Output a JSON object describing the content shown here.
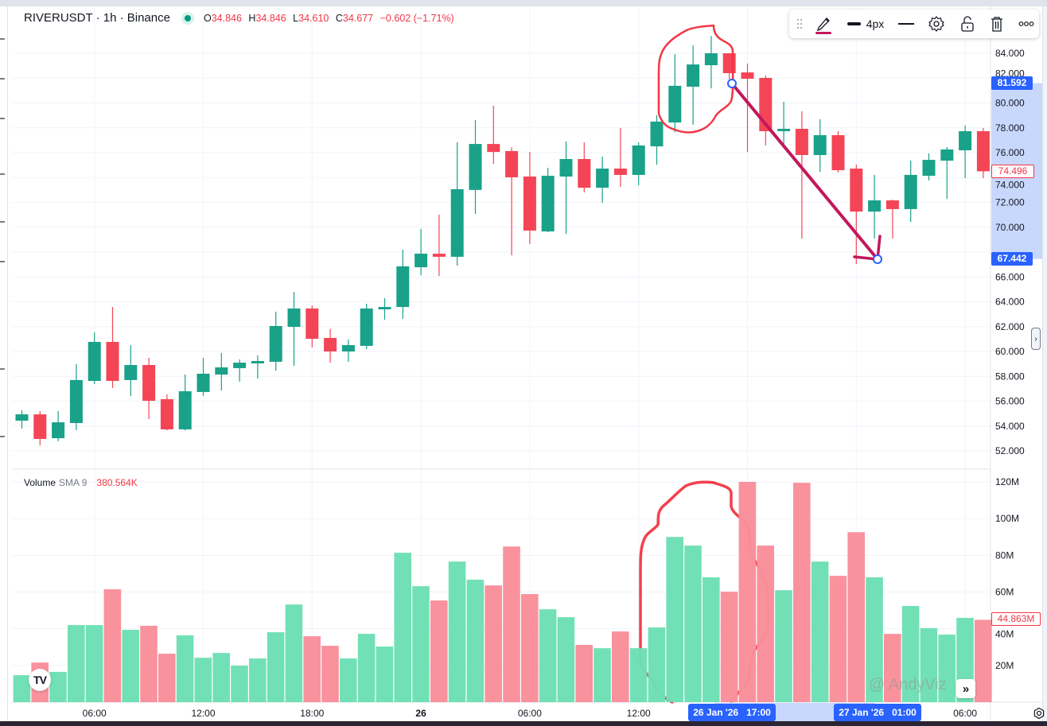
{
  "header": {
    "symbol": "RIVERUSDT · 1h · Binance",
    "open_key": "O",
    "open": "34.846",
    "high_key": "H",
    "high": "34.846",
    "low_key": "L",
    "low": "34.610",
    "close_key": "C",
    "close": "34.677",
    "change": "−0.602 (−1.71%)"
  },
  "volume_legend": {
    "name": "Volume",
    "study": "SMA 9",
    "value": "380.564K"
  },
  "toolbar": {
    "icons": [
      "drag-handle-icon",
      "pencil-icon",
      "line-width-icon",
      "line-style-icon",
      "gear-icon",
      "unlock-icon",
      "trash-icon",
      "more-icon"
    ]
  },
  "price_axis": {
    "ticks": [
      "84.000",
      "82.000",
      "80.000",
      "78.000",
      "76.000",
      "74.000",
      "72.000",
      "70.000",
      "68.000",
      "66.000",
      "64.000",
      "62.000",
      "60.000",
      "58.000",
      "56.000",
      "54.000",
      "52.000"
    ],
    "label_high": "81.592",
    "label_last": "74.496",
    "label_low": "67.442"
  },
  "volume_axis": {
    "ticks": [
      "120M",
      "100M",
      "80M",
      "60M",
      "40M",
      "20M"
    ],
    "label_last": "44.863M"
  },
  "time_axis": {
    "ticks": [
      {
        "label": "06:00",
        "bold": false,
        "index": 4
      },
      {
        "label": "12:00",
        "bold": false,
        "index": 10
      },
      {
        "label": "18:00",
        "bold": false,
        "index": 16
      },
      {
        "label": "26",
        "bold": true,
        "index": 22
      },
      {
        "label": "06:00",
        "bold": false,
        "index": 28
      },
      {
        "label": "12:00",
        "bold": false,
        "index": 34
      },
      {
        "label": "06:00",
        "bold": false,
        "index": 52
      }
    ],
    "label_start": "26 Jan '26   17:00",
    "label_end": "27 Jan '26   01:00"
  },
  "watermark": "@ AndyViz",
  "colors": {
    "up": "#1aa189",
    "down": "#f44556",
    "vol_up": "#6ddfb5",
    "vol_down": "#f98e9a",
    "accent": "#2962ff",
    "drawing": "#c2185b",
    "annotation": "#f23645",
    "range_bg": "#c8d7fc"
  },
  "chart_data": {
    "type": "candlestick",
    "symbol": "RIVERUSDT",
    "interval": "1h",
    "ylim": [
      52,
      84
    ],
    "volume_ylim": [
      0,
      120
    ],
    "volume_unit": "M",
    "ohlc": [
      [
        54.43,
        55.26,
        53.79,
        54.94
      ],
      [
        54.94,
        55.2,
        52.45,
        52.96
      ],
      [
        53.02,
        55.2,
        52.77,
        54.3
      ],
      [
        54.24,
        58.98,
        53.66,
        57.7
      ],
      [
        57.63,
        61.54,
        57.38,
        60.77
      ],
      [
        60.77,
        63.58,
        57.06,
        57.63
      ],
      [
        57.7,
        60.51,
        56.42,
        58.91
      ],
      [
        58.91,
        59.49,
        54.56,
        56.03
      ],
      [
        56.16,
        56.54,
        53.66,
        53.73
      ],
      [
        53.73,
        58.14,
        53.66,
        56.8
      ],
      [
        56.74,
        59.49,
        56.42,
        58.21
      ],
      [
        58.14,
        59.87,
        56.86,
        58.72
      ],
      [
        58.66,
        59.36,
        57.57,
        59.1
      ],
      [
        59.04,
        59.68,
        57.82,
        59.23
      ],
      [
        59.17,
        63.2,
        58.46,
        62.05
      ],
      [
        61.98,
        64.8,
        58.85,
        63.46
      ],
      [
        63.46,
        63.71,
        60.32,
        61.02
      ],
      [
        61.09,
        61.82,
        59.1,
        60.0
      ],
      [
        60.0,
        60.96,
        59.17,
        60.51
      ],
      [
        60.45,
        63.84,
        60.19,
        63.46
      ],
      [
        63.39,
        64.29,
        62.56,
        63.58
      ],
      [
        63.58,
        68.19,
        62.62,
        66.85
      ],
      [
        66.78,
        69.86,
        66.14,
        67.87
      ],
      [
        67.87,
        71.01,
        66.08,
        67.62
      ],
      [
        67.62,
        76.83,
        66.91,
        73.06
      ],
      [
        73.0,
        78.62,
        71.07,
        76.7
      ],
      [
        76.7,
        79.78,
        75.1,
        76.06
      ],
      [
        76.13,
        76.45,
        67.74,
        74.02
      ],
      [
        74.08,
        76.06,
        68.64,
        69.73
      ],
      [
        69.66,
        74.78,
        69.6,
        74.14
      ],
      [
        74.08,
        76.9,
        69.47,
        75.49
      ],
      [
        75.49,
        76.83,
        72.8,
        73.18
      ],
      [
        73.18,
        75.68,
        71.97,
        74.72
      ],
      [
        74.72,
        77.98,
        73.25,
        74.21
      ],
      [
        74.21,
        76.83,
        73.38,
        76.58
      ],
      [
        76.51,
        79.01,
        75.04,
        78.5
      ],
      [
        78.43,
        83.94,
        77.66,
        81.38
      ],
      [
        81.31,
        84.64,
        78.24,
        83.1
      ],
      [
        83.04,
        85.4,
        81.18,
        84.0
      ],
      [
        84.0,
        84.0,
        81.9,
        82.4
      ],
      [
        82.46,
        83.17,
        76.06,
        81.95
      ],
      [
        82.02,
        82.21,
        76.58,
        77.73
      ],
      [
        77.73,
        80.1,
        76.51,
        77.92
      ],
      [
        77.92,
        79.33,
        69.09,
        75.81
      ],
      [
        75.81,
        78.69,
        74.46,
        77.41
      ],
      [
        77.41,
        77.73,
        74.4,
        74.59
      ],
      [
        74.72,
        75.04,
        67.04,
        71.26
      ],
      [
        71.26,
        74.21,
        69.09,
        72.16
      ],
      [
        72.16,
        72.22,
        69.09,
        71.46
      ],
      [
        71.46,
        75.36,
        70.43,
        74.21
      ],
      [
        74.14,
        75.94,
        73.76,
        75.42
      ],
      [
        75.36,
        76.45,
        72.29,
        76.26
      ],
      [
        76.19,
        78.18,
        73.95,
        77.73
      ],
      [
        77.73,
        77.98,
        73.95,
        74.5
      ]
    ],
    "volume": [
      14.7,
      21.6,
      16.5,
      42,
      42,
      61.5,
      39.4,
      41.6,
      26.4,
      36.4,
      24.2,
      26.8,
      19.9,
      23.8,
      38.1,
      53.2,
      35.9,
      30.7,
      23.8,
      37.2,
      30.3,
      81.4,
      63.2,
      55.4,
      76.6,
      66.7,
      63.6,
      84.8,
      58.9,
      50.6,
      46.3,
      31.2,
      29.4,
      38.5,
      29.4,
      40.7,
      90,
      85.3,
      68,
      60.2,
      120,
      85.3,
      61,
      119.5,
      76.6,
      68.8,
      92.6,
      68,
      37.2,
      52.4,
      40.3,
      36.8,
      45.9,
      44.86
    ],
    "trendline": {
      "from_price": 81.592,
      "to_price": 67.442,
      "from_index": 39,
      "to_index": 47
    }
  }
}
